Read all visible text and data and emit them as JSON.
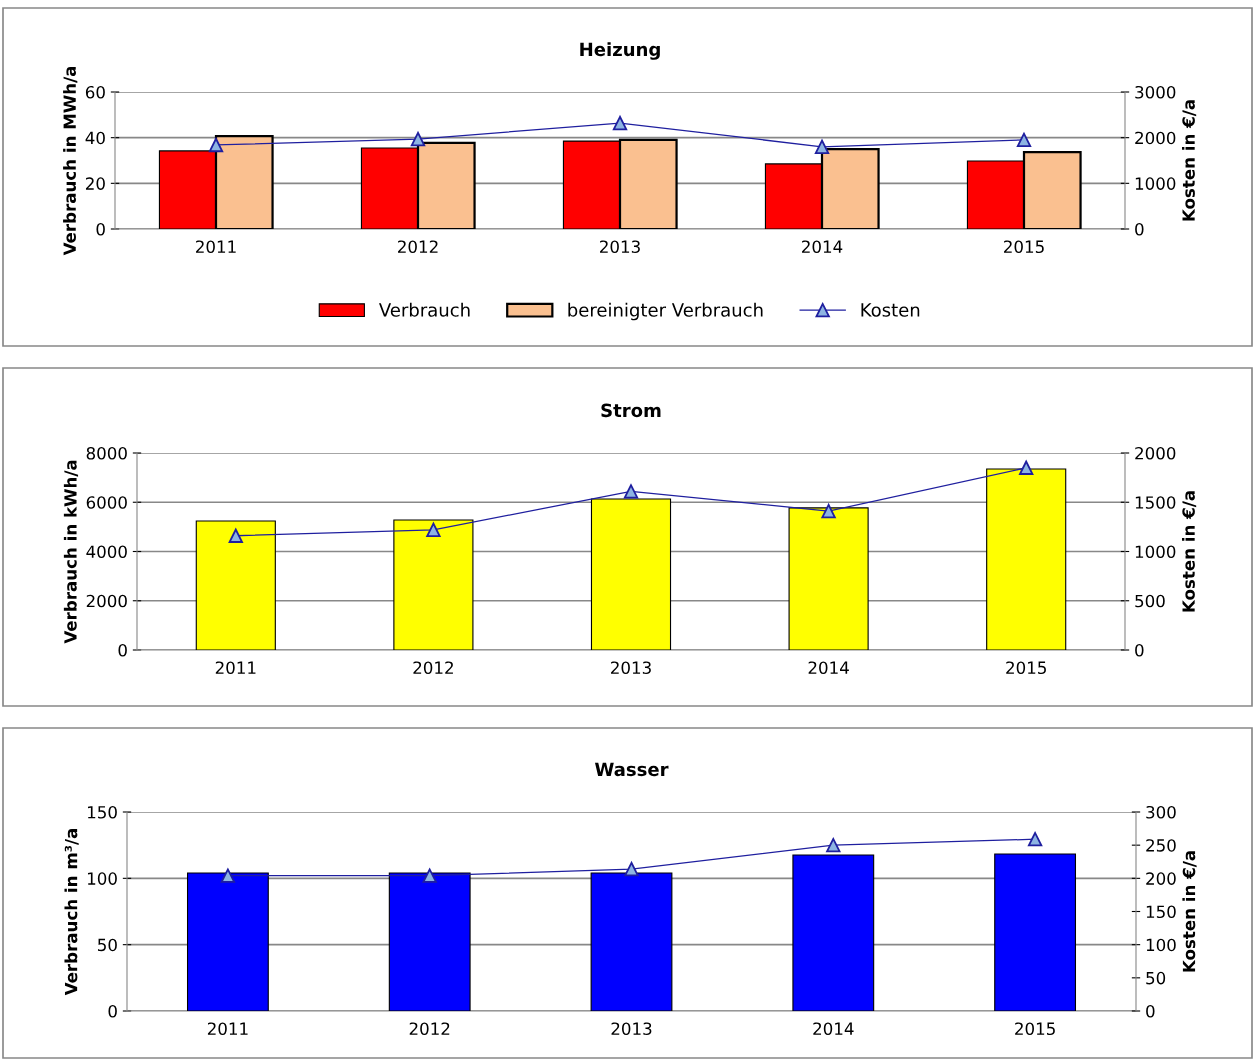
{
  "chart_data": [
    {
      "type": "bar",
      "title": "Heizung",
      "ylabel": "Verbrauch in MWh/a",
      "y2label": "Kosten in €/a",
      "categories": [
        "2011",
        "2012",
        "2013",
        "2014",
        "2015"
      ],
      "series": [
        {
          "name": "Verbrauch",
          "color": "#ff0000",
          "values": [
            34.2,
            35.5,
            38.5,
            28.5,
            29.8
          ]
        },
        {
          "name": "bereinigter Verbrauch",
          "color": "#fac090",
          "values": [
            40.7,
            37.7,
            39,
            35,
            33.7
          ]
        },
        {
          "name": "Kosten",
          "type": "line",
          "axis": "y2",
          "color": "#1f1f9f",
          "marker": "triangle",
          "values": [
            1840,
            1970,
            2320,
            1800,
            1950
          ]
        }
      ],
      "ylim": [
        0,
        60
      ],
      "yticks": [
        0,
        20,
        40,
        60
      ],
      "y2lim": [
        0,
        3000
      ],
      "y2ticks": [
        0,
        1000,
        2000,
        3000
      ],
      "grid": true,
      "legend": "bottom"
    },
    {
      "type": "bar",
      "title": "Strom",
      "ylabel": "Verbrauch in kWh/a",
      "y2label": "Kosten in €/a",
      "categories": [
        "2011",
        "2012",
        "2013",
        "2014",
        "2015"
      ],
      "series": [
        {
          "color": "#ffff00",
          "values": [
            5240,
            5280,
            6130,
            5770,
            7350
          ]
        },
        {
          "type": "line",
          "axis": "y2",
          "color": "#1f1f9f",
          "marker": "triangle",
          "values": [
            1160,
            1220,
            1610,
            1410,
            1850
          ]
        }
      ],
      "ylim": [
        0,
        8000
      ],
      "yticks": [
        0,
        2000,
        4000,
        6000,
        8000
      ],
      "y2lim": [
        0,
        2000
      ],
      "y2ticks": [
        0,
        500,
        1000,
        1500,
        2000
      ],
      "grid": true,
      "legend": false
    },
    {
      "type": "bar",
      "title": "Wasser",
      "ylabel": "Verbrauch in m³/a",
      "y2label": "Kosten in €/a",
      "categories": [
        "2011",
        "2012",
        "2013",
        "2014",
        "2015"
      ],
      "series": [
        {
          "color": "#0000ff",
          "values": [
            104,
            104,
            104,
            117.6,
            118.3
          ]
        },
        {
          "type": "line",
          "axis": "y2",
          "color": "#1f1f9f",
          "marker": "triangle",
          "values": [
            204,
            204,
            214,
            250,
            259
          ]
        }
      ],
      "ylim": [
        0,
        150
      ],
      "yticks": [
        0,
        50,
        100,
        150
      ],
      "y2lim": [
        0,
        300
      ],
      "y2ticks": [
        0,
        50,
        100,
        150,
        200,
        250,
        300
      ],
      "grid": true,
      "legend": false
    }
  ]
}
